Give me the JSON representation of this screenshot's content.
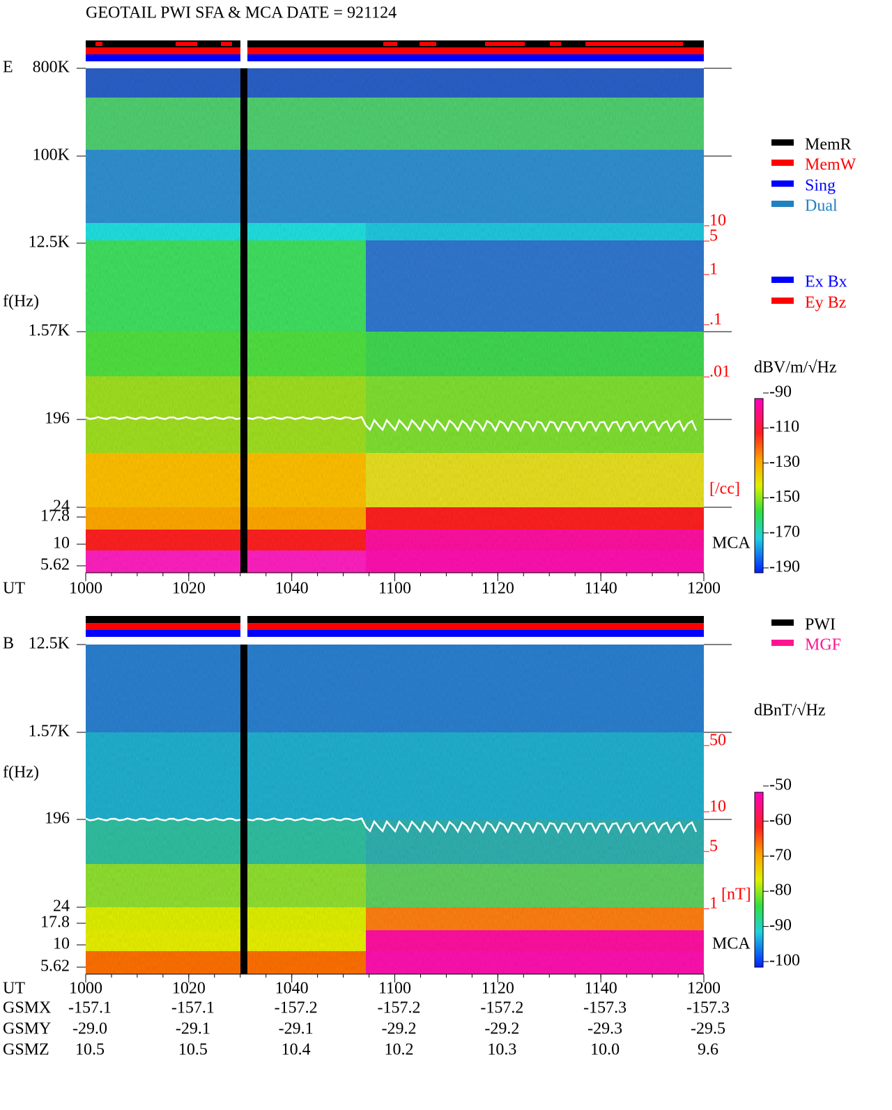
{
  "title": "GEOTAIL  PWI SFA & MCA   DATE = 921124",
  "time_axis": {
    "label": "UT",
    "ticks": [
      "1000",
      "1020",
      "1040",
      "1100",
      "1120",
      "1140",
      "1200"
    ]
  },
  "panels": [
    {
      "label": "E",
      "freq_label": "f(Hz)",
      "freq_ticks": [
        "800K",
        "100K",
        "12.5K",
        "1.57K",
        "196",
        "24",
        "17.8",
        "10",
        "5.62"
      ],
      "mca_label": "MCA",
      "right_ticks": [
        "10",
        "5",
        "1",
        ".1",
        ".01"
      ],
      "right_unit": "[/cc]",
      "colorbar_unit": "dBV/m/√Hz",
      "colorbar_ticks": [
        -90,
        -110,
        -130,
        -150,
        -170,
        -190
      ],
      "legend": [
        {
          "name": "MemR",
          "color": "#000000"
        },
        {
          "name": "MemW",
          "color": "#ff0000"
        },
        {
          "name": "Sing",
          "color": "#0000ff"
        },
        {
          "name": "Dual",
          "color": "#2080c0"
        }
      ],
      "legend2": [
        {
          "name": "Ex Bx",
          "color": "#0000ff"
        },
        {
          "name": "Ey Bz",
          "color": "#ff0000"
        }
      ]
    },
    {
      "label": "B",
      "freq_label": "f(Hz)",
      "freq_ticks": [
        "12.5K",
        "1.57K",
        "196",
        "24",
        "17.8",
        "10",
        "5.62"
      ],
      "mca_label": "MCA",
      "right_ticks": [
        "50",
        "10",
        "5",
        "1"
      ],
      "right_unit": "[nT]",
      "colorbar_unit": "dBnT/√Hz",
      "colorbar_ticks": [
        -50,
        -60,
        -70,
        -80,
        -90,
        -100
      ],
      "legend": [
        {
          "name": "PWI",
          "color": "#000000"
        },
        {
          "name": "MGF",
          "color": "#ff1493"
        }
      ]
    }
  ],
  "orbit": [
    {
      "label": "GSMX",
      "values": [
        "-157.1",
        "-157.1",
        "-157.2",
        "-157.2",
        "-157.2",
        "-157.3",
        "-157.3"
      ]
    },
    {
      "label": "GSMY",
      "values": [
        "-29.0",
        "-29.1",
        "-29.1",
        "-29.2",
        "-29.2",
        "-29.3",
        "-29.5"
      ]
    },
    {
      "label": "GSMZ",
      "values": [
        "10.5",
        "10.5",
        "10.4",
        "10.2",
        "10.3",
        "10.0",
        "9.6"
      ]
    }
  ]
}
